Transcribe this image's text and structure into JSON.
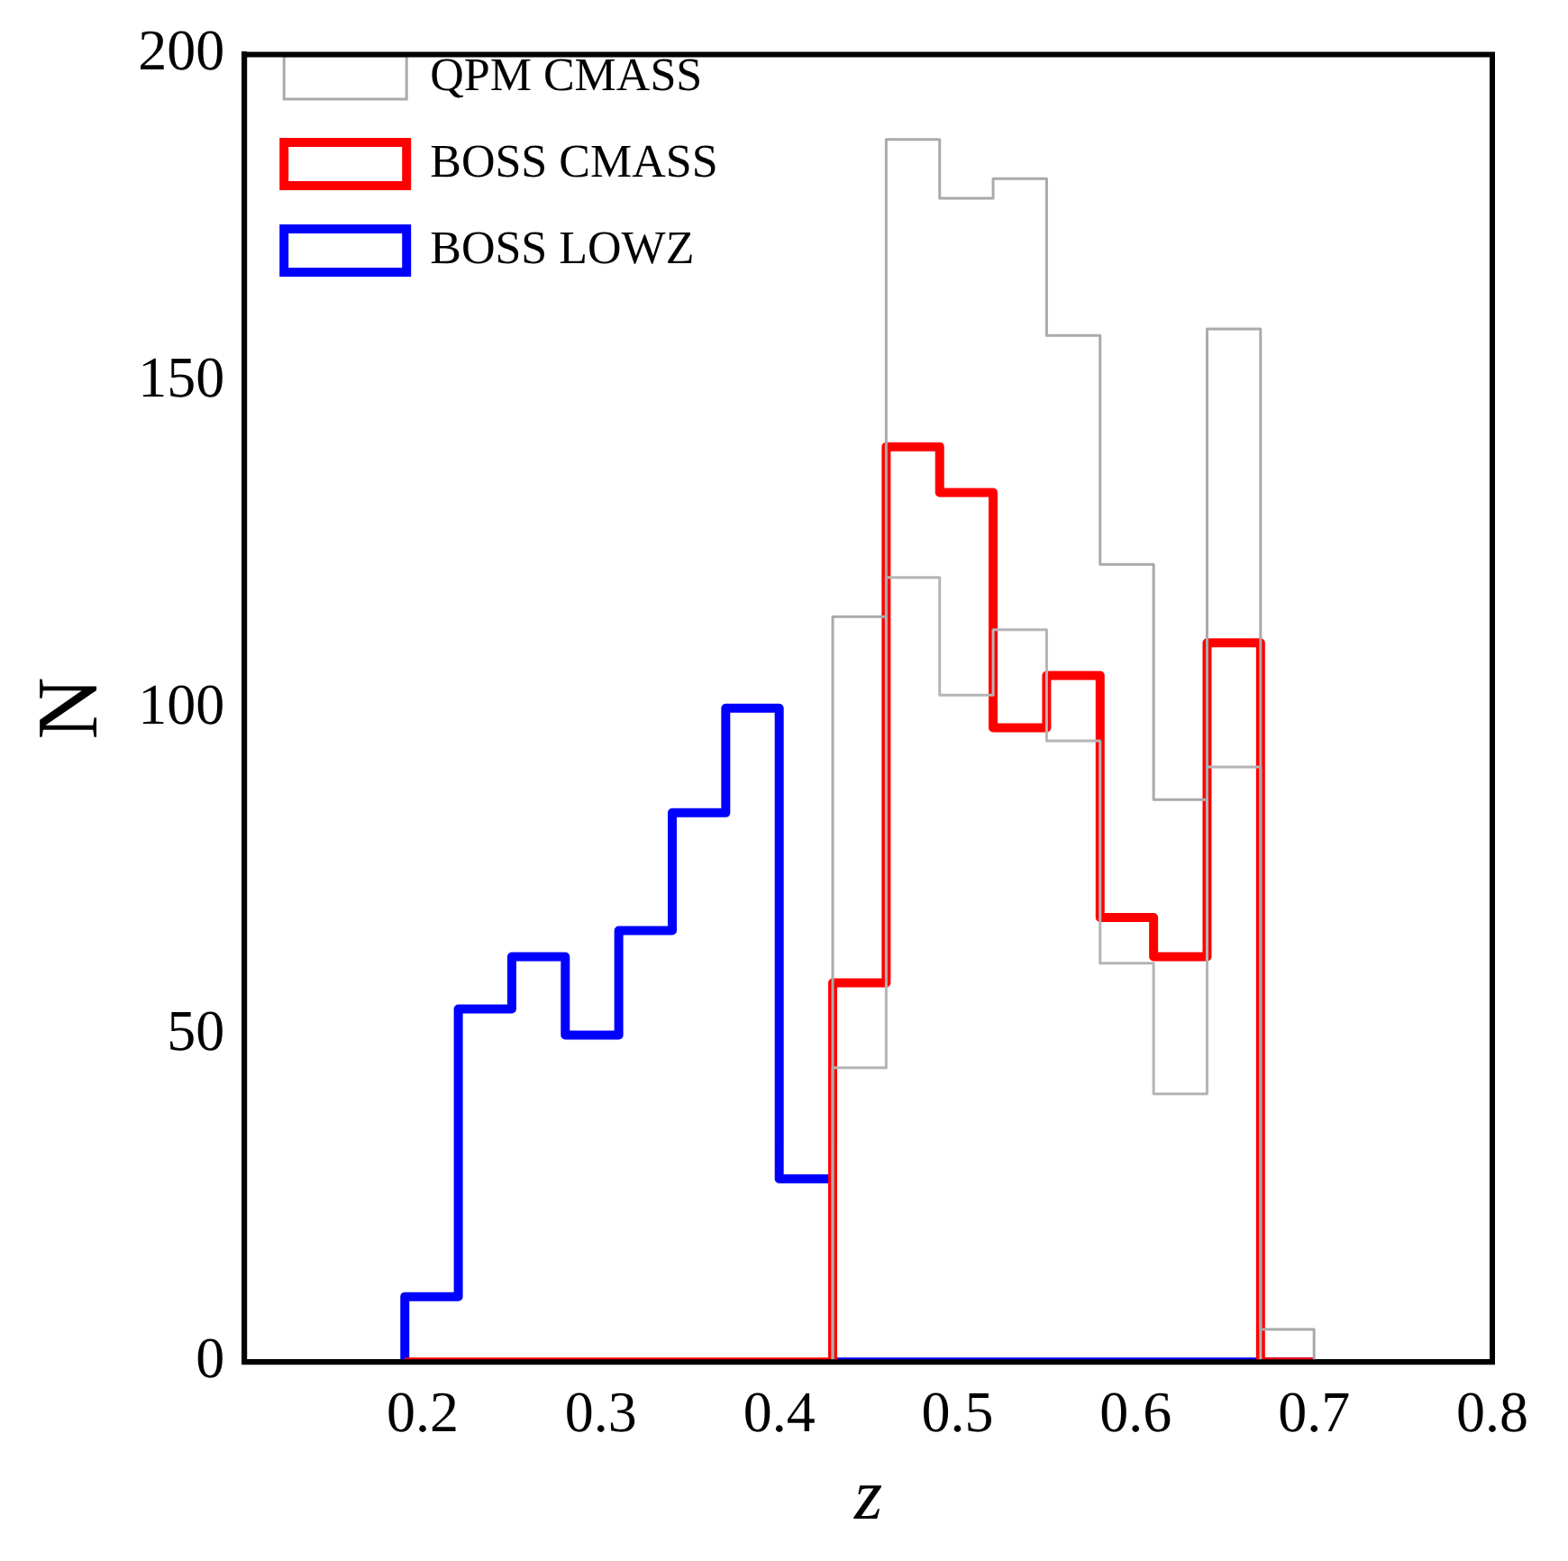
{
  "chart_data": {
    "type": "histogram",
    "xlabel": "z",
    "ylabel": "N",
    "xlim": [
      0.1,
      0.8
    ],
    "xticks": [
      0.2,
      0.3,
      0.4,
      0.5,
      0.6,
      0.7,
      0.8
    ],
    "ylim": [
      0,
      200
    ],
    "yticks": [
      0,
      50,
      100,
      150,
      200
    ],
    "grid": false,
    "legend": "top left",
    "bins": [
      0.19,
      0.22,
      0.25,
      0.28,
      0.31,
      0.34,
      0.37,
      0.4,
      0.43,
      0.46,
      0.49,
      0.52,
      0.55,
      0.58,
      0.61,
      0.64,
      0.67,
      0.7
    ],
    "series": [
      {
        "name": "QPM CMASS",
        "color": "#aaaaaa",
        "values": [
          0,
          0,
          0,
          0,
          0,
          0,
          0,
          0,
          114,
          187,
          178,
          181,
          157,
          122,
          86,
          158,
          5
        ]
      },
      {
        "color": "#b4b4b4",
        "values": [
          0,
          0,
          0,
          0,
          0,
          0,
          0,
          0,
          45,
          120,
          102,
          112,
          95,
          61,
          41,
          91,
          0
        ]
      },
      {
        "name": "BOSS CMASS",
        "color": "#ff0000",
        "values": [
          0,
          0,
          0,
          0,
          0,
          0,
          0,
          0,
          58,
          140,
          133,
          97,
          105,
          68,
          62,
          110,
          0
        ]
      },
      {
        "name": "BOSS LOWZ",
        "color": "#0000ff",
        "values": [
          10,
          54,
          62,
          50,
          66,
          84,
          100,
          28,
          0,
          0,
          0,
          0,
          0,
          0,
          0,
          0,
          0
        ]
      }
    ]
  }
}
